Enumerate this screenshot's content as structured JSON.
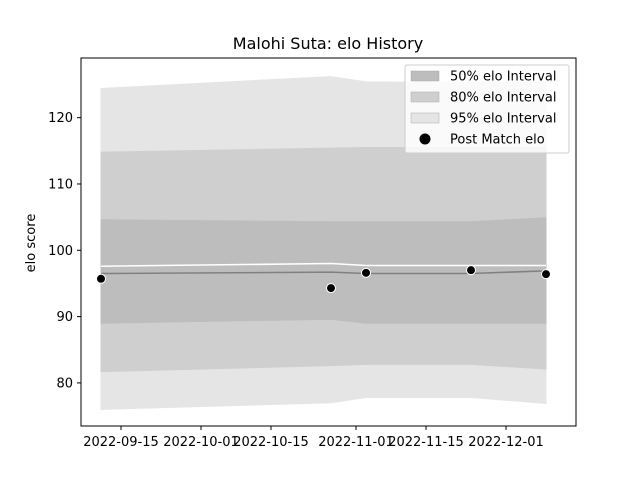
{
  "chart_data": {
    "type": "area",
    "title": "Malohi Suta: elo History",
    "xlabel": "",
    "ylabel": "elo score",
    "x_axis_type": "date",
    "xlim": [
      "2022-09-07",
      "2022-12-15"
    ],
    "ylim": [
      73.5,
      129
    ],
    "x_ticks": [
      "2022-09-15",
      "2022-10-01",
      "2022-10-15",
      "2022-11-01",
      "2022-11-15",
      "2022-12-01"
    ],
    "y_ticks": [
      80,
      90,
      100,
      110,
      120
    ],
    "grid": false,
    "legend_position": "top-right",
    "x": [
      "2022-09-11",
      "2022-10-27",
      "2022-11-03",
      "2022-11-24",
      "2022-12-09"
    ],
    "series": [
      {
        "name": "95% elo Interval",
        "kind": "band",
        "color": "#e5e5e5",
        "lower": [
          76.0,
          77.0,
          77.8,
          77.8,
          76.9
        ],
        "upper": [
          124.4,
          126.2,
          125.4,
          125.3,
          125.3
        ]
      },
      {
        "name": "80% elo Interval",
        "kind": "band",
        "color": "#cfcfcf",
        "lower": [
          81.7,
          82.6,
          82.8,
          82.8,
          82.1
        ],
        "upper": [
          114.8,
          115.4,
          115.5,
          115.5,
          115.5
        ]
      },
      {
        "name": "50% elo Interval",
        "kind": "band",
        "color": "#bdbdbd",
        "lower": [
          89.0,
          89.6,
          89.0,
          89.0,
          89.0
        ],
        "upper": [
          104.6,
          104.3,
          104.3,
          104.3,
          104.9
        ]
      },
      {
        "name": "",
        "kind": "line",
        "color": "#ffffff",
        "values": [
          97.6,
          98.0,
          97.7,
          97.7,
          97.7
        ]
      },
      {
        "name": "",
        "kind": "line",
        "color": "#808080",
        "values": [
          96.5,
          96.7,
          96.5,
          96.5,
          96.9
        ]
      },
      {
        "name": "Post Match elo",
        "kind": "scatter",
        "color": "#000000",
        "points": [
          {
            "x": "2022-09-11",
            "y": 95.7
          },
          {
            "x": "2022-10-27",
            "y": 94.3
          },
          {
            "x": "2022-11-03",
            "y": 96.6
          },
          {
            "x": "2022-11-24",
            "y": 97.0
          },
          {
            "x": "2022-12-09",
            "y": 96.4
          }
        ]
      }
    ],
    "legend": [
      "50% elo Interval",
      "80% elo Interval",
      "95% elo Interval",
      "Post Match elo"
    ]
  }
}
